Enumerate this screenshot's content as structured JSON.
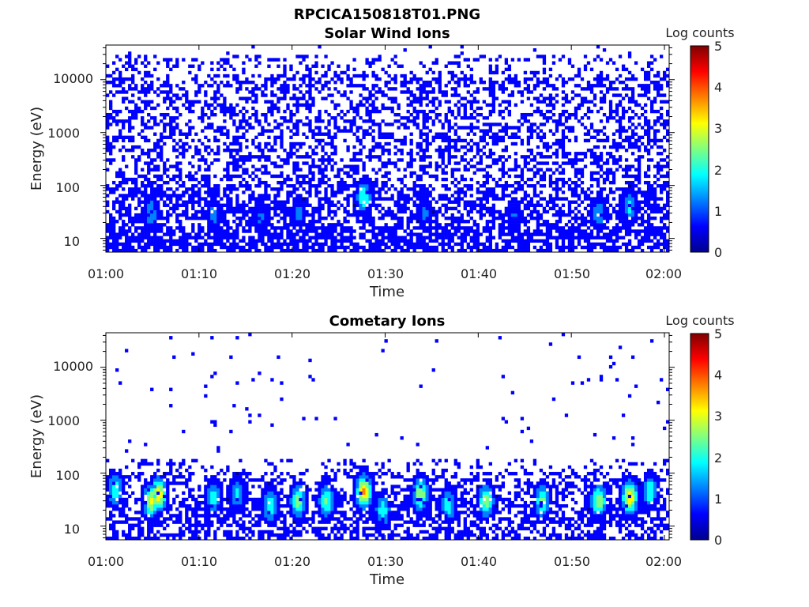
{
  "figure": {
    "title": "RPCICA150818T01.PNG"
  },
  "colormap": [
    "#00008f",
    "#0000ff",
    "#0080ff",
    "#00ffff",
    "#80ff80",
    "#ffff00",
    "#ff8000",
    "#ff0000",
    "#800000"
  ],
  "chart_data": [
    {
      "type": "heatmap",
      "title": "Solar Wind Ions",
      "xlabel": "Time",
      "ylabel": "Energy (eV)",
      "x_ticks": [
        "01:00",
        "01:10",
        "01:20",
        "01:30",
        "01:40",
        "01:50",
        "02:00"
      ],
      "x_range_minutes": [
        0,
        60
      ],
      "y_ticks": [
        "10",
        "100",
        "1000",
        "10000"
      ],
      "y_scale": "log",
      "ylim": [
        5.5,
        45000
      ],
      "colorbar": {
        "label": "Log counts",
        "ticks": [
          "0",
          "1",
          "2",
          "3",
          "4",
          "5"
        ],
        "range": [
          0,
          5
        ]
      },
      "hotspots": [
        {
          "minute": 4.8,
          "energy_ev": 30,
          "log_counts": 1.6
        },
        {
          "minute": 11.5,
          "energy_ev": 28,
          "log_counts": 1.2
        },
        {
          "minute": 16.5,
          "energy_ev": 25,
          "log_counts": 1.1
        },
        {
          "minute": 20.5,
          "energy_ev": 30,
          "log_counts": 1.2
        },
        {
          "minute": 27.5,
          "energy_ev": 60,
          "log_counts": 2.2
        },
        {
          "minute": 34.0,
          "energy_ev": 30,
          "log_counts": 1.1
        },
        {
          "minute": 43.5,
          "energy_ev": 28,
          "log_counts": 1.0
        },
        {
          "minute": 52.5,
          "energy_ev": 30,
          "log_counts": 1.4
        },
        {
          "minute": 55.8,
          "energy_ev": 40,
          "log_counts": 1.8
        }
      ]
    },
    {
      "type": "heatmap",
      "title": "Cometary Ions",
      "xlabel": "Time",
      "ylabel": "Energy (eV)",
      "x_ticks": [
        "01:00",
        "01:10",
        "01:20",
        "01:30",
        "01:40",
        "01:50",
        "02:00"
      ],
      "x_range_minutes": [
        0,
        60
      ],
      "y_ticks": [
        "10",
        "100",
        "1000",
        "10000"
      ],
      "y_scale": "log",
      "ylim": [
        5.5,
        45000
      ],
      "colorbar": {
        "label": "Log counts",
        "ticks": [
          "0",
          "1",
          "2",
          "3",
          "4",
          "5"
        ],
        "range": [
          0,
          5
        ]
      },
      "hotspots": [
        {
          "minute": 1.0,
          "energy_ev": 50,
          "log_counts": 2.2
        },
        {
          "minute": 4.8,
          "energy_ev": 30,
          "log_counts": 3.0
        },
        {
          "minute": 5.6,
          "energy_ev": 40,
          "log_counts": 3.4
        },
        {
          "minute": 11.5,
          "energy_ev": 35,
          "log_counts": 2.0
        },
        {
          "minute": 14.0,
          "energy_ev": 40,
          "log_counts": 1.8
        },
        {
          "minute": 17.5,
          "energy_ev": 25,
          "log_counts": 2.2
        },
        {
          "minute": 20.5,
          "energy_ev": 30,
          "log_counts": 2.6
        },
        {
          "minute": 23.5,
          "energy_ev": 30,
          "log_counts": 2.4
        },
        {
          "minute": 27.5,
          "energy_ev": 45,
          "log_counts": 3.6
        },
        {
          "minute": 29.5,
          "energy_ev": 20,
          "log_counts": 2.0
        },
        {
          "minute": 33.5,
          "energy_ev": 40,
          "log_counts": 2.8
        },
        {
          "minute": 36.5,
          "energy_ev": 25,
          "log_counts": 2.0
        },
        {
          "minute": 40.5,
          "energy_ev": 30,
          "log_counts": 2.6
        },
        {
          "minute": 46.5,
          "energy_ev": 30,
          "log_counts": 2.4
        },
        {
          "minute": 52.5,
          "energy_ev": 30,
          "log_counts": 2.8
        },
        {
          "minute": 55.8,
          "energy_ev": 35,
          "log_counts": 3.4
        },
        {
          "minute": 58.0,
          "energy_ev": 45,
          "log_counts": 2.2
        }
      ]
    }
  ]
}
